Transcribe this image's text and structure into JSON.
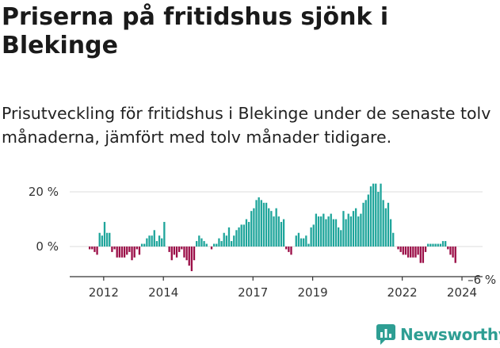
{
  "title": "Priserna på fritidshus sjönk i Blekinge",
  "subtitle": "Prisutveckling för fritidshus i Blekinge under de senaste tolv månaderna, jämfört med tolv månader tidigare.",
  "source_logo": "Newsworthy",
  "colors": {
    "positive": "#1fa59b",
    "negative": "#9b0e47",
    "grid": "#dddddd",
    "axis": "#333333"
  },
  "chart_data": {
    "type": "bar",
    "title": "",
    "xlabel": "",
    "ylabel": "",
    "y_unit": "%",
    "ylim": [
      -11,
      24
    ],
    "grid": true,
    "y_ticks": [
      {
        "value": 20,
        "label": "20 %"
      },
      {
        "value": 0,
        "label": "0 %"
      }
    ],
    "x_ticks": [
      {
        "value": 2012,
        "label": "2012"
      },
      {
        "value": 2014,
        "label": "2014"
      },
      {
        "value": 2017,
        "label": "2017"
      },
      {
        "value": 2019,
        "label": "2019"
      },
      {
        "value": 2022,
        "label": "2022"
      },
      {
        "value": 2024,
        "label": "2024"
      }
    ],
    "x_start": 2011.5,
    "x_step": 0.08333,
    "annotation": {
      "text": "–6 %",
      "index": 156
    },
    "values": [
      -1,
      -1,
      -2,
      -3,
      5,
      4,
      9,
      5,
      5,
      -2,
      -1,
      -4,
      -4,
      -4,
      -4,
      -3,
      -2,
      -5,
      -4,
      -1,
      -3,
      1,
      1,
      3,
      4,
      4,
      6,
      2,
      4,
      3,
      9,
      0,
      -2,
      -5,
      -3,
      -4,
      -2,
      -1,
      -4,
      -5,
      -7,
      -9,
      -5,
      2,
      4,
      3,
      2,
      1,
      0,
      -1,
      1,
      1,
      3,
      2,
      5,
      4,
      7,
      2,
      4,
      6,
      7,
      8,
      8,
      10,
      9,
      13,
      14,
      17,
      18,
      17,
      16,
      16,
      14,
      13,
      11,
      14,
      11,
      9,
      10,
      -1,
      -2,
      -3,
      0,
      4,
      5,
      3,
      3,
      4,
      1,
      7,
      8,
      12,
      11,
      11,
      12,
      10,
      11,
      12,
      10,
      10,
      7,
      6,
      13,
      10,
      12,
      11,
      13,
      14,
      11,
      12,
      16,
      17,
      19,
      22,
      23,
      23,
      20,
      23,
      17,
      14,
      16,
      10,
      5,
      0,
      -1,
      -2,
      -3,
      -3,
      -4,
      -4,
      -4,
      -4,
      -3,
      -6,
      -6,
      -2,
      1,
      1,
      1,
      1,
      1,
      1,
      2,
      2,
      -1,
      -3,
      -4,
      -6
    ]
  }
}
